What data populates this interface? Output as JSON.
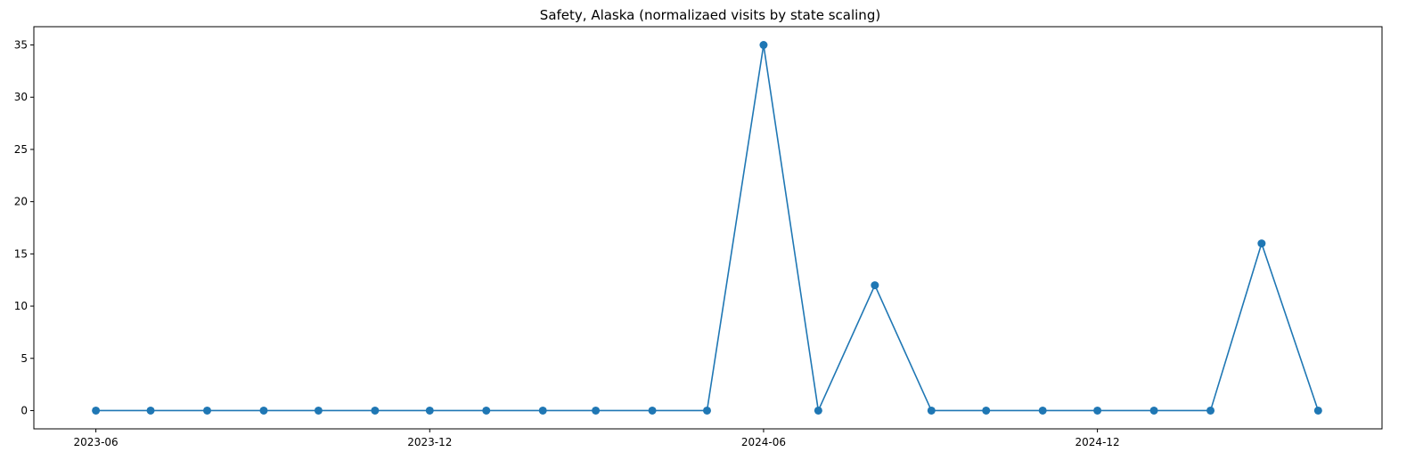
{
  "chart_data": {
    "type": "line",
    "title": "Safety, Alaska (normalizaed visits by state scaling)",
    "xlabel": "",
    "ylabel": "",
    "x": [
      "2023-06",
      "2023-07",
      "2023-08",
      "2023-09",
      "2023-10",
      "2023-11",
      "2023-12",
      "2024-01",
      "2024-02",
      "2024-03",
      "2024-04",
      "2024-05",
      "2024-06",
      "2024-07",
      "2024-08",
      "2024-09",
      "2024-10",
      "2024-11",
      "2024-12",
      "2025-01",
      "2025-02",
      "2025-03",
      "2025-04"
    ],
    "series": [
      {
        "values": [
          0,
          0,
          0,
          0,
          0,
          0,
          0,
          0,
          0,
          0,
          0,
          0,
          35,
          0,
          12,
          0,
          0,
          0,
          0,
          0,
          0,
          16,
          0
        ]
      }
    ],
    "xticks": [
      "2023-06",
      "2023-12",
      "2024-06",
      "2024-12"
    ],
    "yticks": [
      0,
      5,
      10,
      15,
      20,
      25,
      30,
      35
    ],
    "ylim": [
      -1.75,
      36.75
    ],
    "xlim": [
      "2023-04-28",
      "2025-05-06"
    ],
    "grid": false,
    "colors": {
      "line": "#1f77b4",
      "marker": "#1f77b4"
    }
  }
}
